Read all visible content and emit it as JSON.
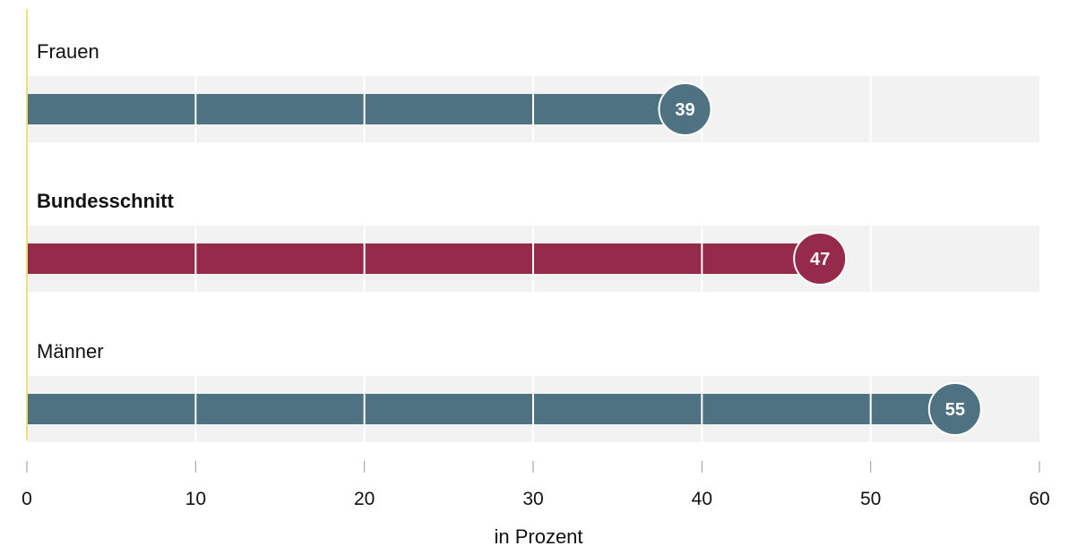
{
  "chart_data": {
    "type": "bar",
    "orientation": "horizontal",
    "categories": [
      "Frauen",
      "Bundesschnitt",
      "Männer"
    ],
    "values": [
      39,
      47,
      55
    ],
    "emphasized_category": "Bundesschnitt",
    "xlim": [
      0,
      60
    ],
    "xticks": [
      0,
      10,
      20,
      30,
      40,
      50,
      60
    ],
    "xlabel": "in Prozent",
    "grid": true,
    "colors": {
      "default_bar": "#4f7282",
      "highlight_bar": "#962a4b",
      "track": "#f2f2f2",
      "zero_line": "#e9e27a",
      "tick": "#999999"
    }
  }
}
